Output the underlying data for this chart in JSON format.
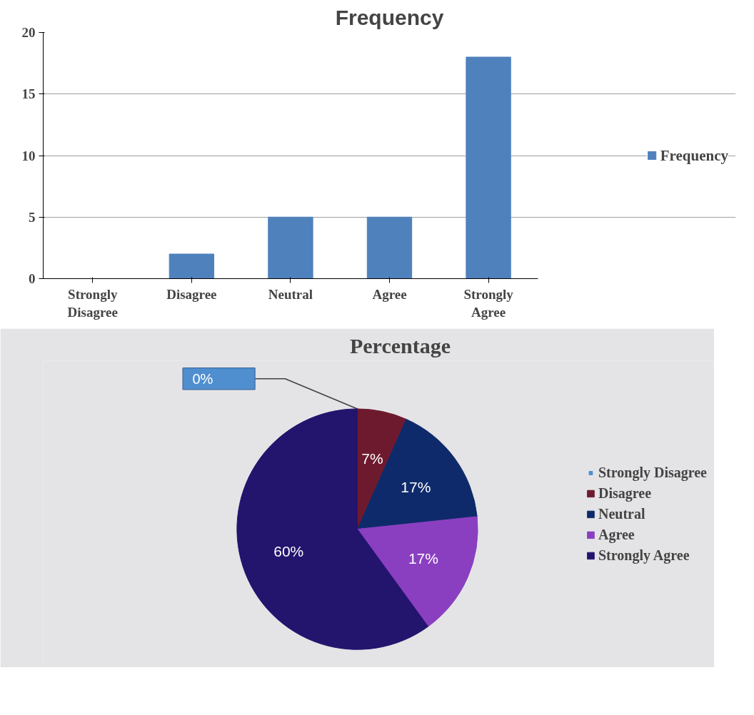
{
  "chart_data": [
    {
      "type": "bar",
      "title": "Frequency",
      "categories": [
        "Strongly Disagree",
        "Disagree",
        "Neutral",
        "Agree",
        "Strongly Agree"
      ],
      "series": [
        {
          "name": "Frequency",
          "color": "#4f81bd",
          "values": [
            0,
            2,
            5,
            5,
            18
          ]
        }
      ],
      "ylim": [
        0,
        20
      ],
      "yticks": [
        0,
        5,
        10,
        15,
        20
      ],
      "grid": "y",
      "legend": "right"
    },
    {
      "type": "pie",
      "title": "Percentage",
      "categories": [
        "Strongly Disagree",
        "Disagree",
        "Neutral",
        "Agree",
        "Strongly Agree"
      ],
      "values": [
        0,
        6.66,
        16.67,
        16.67,
        60
      ],
      "value_labels": [
        "0%",
        "7%",
        "17%",
        "17%",
        "60%"
      ],
      "colors": [
        "#4f8fcf",
        "#6e1a2e",
        "#0f2a6b",
        "#8a3fc0",
        "#23146e"
      ],
      "legend": "right"
    }
  ]
}
